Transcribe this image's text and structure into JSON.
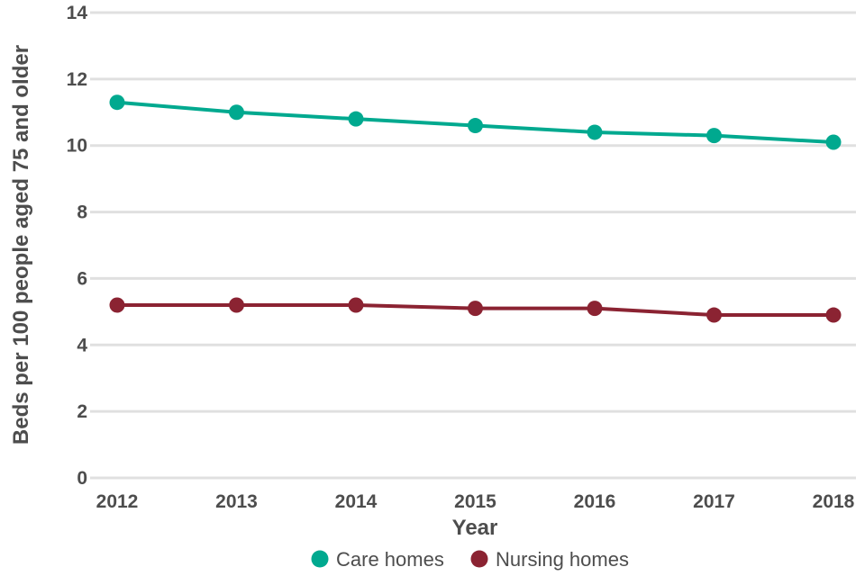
{
  "chart_data": {
    "type": "line",
    "title": "",
    "xlabel": "Year",
    "ylabel": "Beds per 100 people aged 75 and older",
    "categories": [
      "2012",
      "2013",
      "2014",
      "2015",
      "2016",
      "2017",
      "2018"
    ],
    "ylim": [
      0,
      14
    ],
    "yticks": [
      "0",
      "2",
      "4",
      "6",
      "8",
      "10",
      "12",
      "14"
    ],
    "grid": "horizontal",
    "legend": "bottom",
    "series": [
      {
        "name": "Care homes",
        "color": "#00a98f",
        "values": [
          11.3,
          11.0,
          10.8,
          10.6,
          10.4,
          10.3,
          10.1
        ]
      },
      {
        "name": "Nursing homes",
        "color": "#8b2332",
        "values": [
          5.2,
          5.2,
          5.2,
          5.1,
          5.1,
          4.9,
          4.9
        ]
      }
    ]
  }
}
